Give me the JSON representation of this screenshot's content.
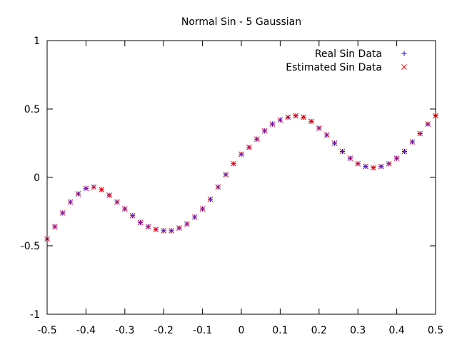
{
  "chart_data": {
    "type": "scatter",
    "title": "Normal Sin - 5 Gaussian",
    "xlabel": "",
    "ylabel": "",
    "xlim": [
      -0.5,
      0.5
    ],
    "ylim": [
      -1,
      1
    ],
    "grid": false,
    "legend_position": "top-right",
    "x_ticks": [
      -0.5,
      -0.4,
      -0.3,
      -0.2,
      -0.1,
      0,
      0.1,
      0.2,
      0.3,
      0.4,
      0.5
    ],
    "x_tick_labels": [
      "-0.5",
      "-0.4",
      "-0.3",
      "-0.2",
      "-0.1",
      "0",
      "0.1",
      "0.2",
      "0.3",
      "0.4",
      "0.5"
    ],
    "y_ticks": [
      -1,
      -0.5,
      0,
      0.5,
      1
    ],
    "y_tick_labels": [
      "-1",
      "-0.5",
      "0",
      "0.5",
      "1"
    ],
    "series": [
      {
        "name": "Real Sin Data",
        "marker": "plus",
        "color": "#0000ff",
        "x": [
          -0.5,
          -0.48,
          -0.46,
          -0.44,
          -0.42,
          -0.4,
          -0.38,
          -0.36,
          -0.34,
          -0.32,
          -0.3,
          -0.28,
          -0.26,
          -0.24,
          -0.22,
          -0.2,
          -0.18,
          -0.16,
          -0.14,
          -0.12,
          -0.1,
          -0.08,
          -0.06,
          -0.04,
          -0.02,
          0,
          0.02,
          0.04,
          0.06,
          0.08,
          0.1,
          0.12,
          0.14,
          0.16,
          0.18,
          0.2,
          0.22,
          0.24,
          0.26,
          0.28,
          0.3,
          0.32,
          0.34,
          0.36,
          0.38,
          0.4,
          0.42,
          0.44,
          0.46,
          0.48,
          0.5
        ],
        "y": [
          -0.45,
          -0.36,
          -0.26,
          -0.18,
          -0.12,
          -0.08,
          -0.07,
          -0.09,
          -0.13,
          -0.18,
          -0.23,
          -0.28,
          -0.33,
          -0.36,
          -0.38,
          -0.39,
          -0.39,
          -0.37,
          -0.34,
          -0.29,
          -0.23,
          -0.16,
          -0.07,
          0.02,
          0.1,
          0.17,
          0.22,
          0.28,
          0.34,
          0.39,
          0.42,
          0.44,
          0.45,
          0.44,
          0.41,
          0.36,
          0.31,
          0.25,
          0.19,
          0.14,
          0.1,
          0.08,
          0.07,
          0.08,
          0.1,
          0.14,
          0.19,
          0.26,
          0.32,
          0.39,
          0.45
        ]
      },
      {
        "name": "Estimated Sin Data",
        "marker": "cross",
        "color": "#ff0000",
        "x": [
          -0.5,
          -0.48,
          -0.46,
          -0.44,
          -0.42,
          -0.4,
          -0.38,
          -0.36,
          -0.34,
          -0.32,
          -0.3,
          -0.28,
          -0.26,
          -0.24,
          -0.22,
          -0.2,
          -0.18,
          -0.16,
          -0.14,
          -0.12,
          -0.1,
          -0.08,
          -0.06,
          -0.04,
          -0.02,
          0,
          0.02,
          0.04,
          0.06,
          0.08,
          0.1,
          0.12,
          0.14,
          0.16,
          0.18,
          0.2,
          0.22,
          0.24,
          0.26,
          0.28,
          0.3,
          0.32,
          0.34,
          0.36,
          0.38,
          0.4,
          0.42,
          0.44,
          0.46,
          0.48,
          0.5
        ],
        "y": [
          -0.45,
          -0.36,
          -0.26,
          -0.18,
          -0.12,
          -0.08,
          -0.07,
          -0.09,
          -0.13,
          -0.18,
          -0.23,
          -0.28,
          -0.33,
          -0.36,
          -0.38,
          -0.39,
          -0.39,
          -0.37,
          -0.34,
          -0.29,
          -0.23,
          -0.16,
          -0.07,
          0.02,
          0.1,
          0.17,
          0.22,
          0.28,
          0.34,
          0.39,
          0.42,
          0.44,
          0.45,
          0.44,
          0.41,
          0.36,
          0.31,
          0.25,
          0.19,
          0.14,
          0.1,
          0.08,
          0.07,
          0.08,
          0.1,
          0.14,
          0.19,
          0.26,
          0.32,
          0.39,
          0.45
        ]
      }
    ]
  }
}
